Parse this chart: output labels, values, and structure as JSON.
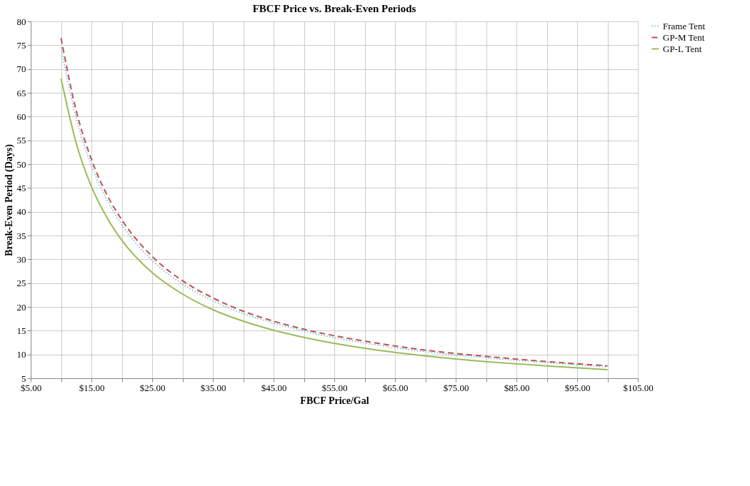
{
  "chart_data": {
    "type": "line",
    "title": "FBCF Price vs. Break-Even  Periods",
    "xlabel": "FBCF Price/Gal",
    "ylabel": "Break-Even Period (Days)",
    "x": [
      10,
      12.5,
      15,
      17.5,
      20,
      25,
      30,
      35,
      40,
      45,
      50,
      60,
      70,
      80,
      90,
      100
    ],
    "series": [
      {
        "name": "Frame Tent",
        "color": "#4bacc6",
        "line_style": "dotted",
        "values": [
          74.5,
          59.6,
          49.7,
          42.6,
          37.3,
          29.8,
          24.8,
          21.3,
          18.6,
          16.6,
          14.9,
          12.4,
          10.6,
          9.3,
          8.3,
          7.4
        ]
      },
      {
        "name": "GP-M Tent",
        "color": "#c0504d",
        "line_style": "dashed",
        "values": [
          76.5,
          61.2,
          51.0,
          43.7,
          38.3,
          30.6,
          25.5,
          21.9,
          19.1,
          17.0,
          15.3,
          12.8,
          10.9,
          9.6,
          8.5,
          7.6
        ]
      },
      {
        "name": "GP-L Tent",
        "color": "#9bbb59",
        "line_style": "solid",
        "values": [
          68.0,
          54.4,
          45.3,
          38.9,
          34.0,
          27.2,
          22.7,
          19.4,
          17.0,
          15.1,
          13.6,
          11.3,
          9.7,
          8.5,
          7.6,
          6.8
        ]
      }
    ],
    "xlim": [
      5,
      105
    ],
    "xticks": [
      {
        "value": 5,
        "label": "$5.00"
      },
      {
        "value": 10,
        "label": null
      },
      {
        "value": 15,
        "label": "$15.00"
      },
      {
        "value": 20,
        "label": null
      },
      {
        "value": 25,
        "label": "$25.00"
      },
      {
        "value": 30,
        "label": null
      },
      {
        "value": 35,
        "label": "$35.00"
      },
      {
        "value": 40,
        "label": null
      },
      {
        "value": 45,
        "label": "$45.00"
      },
      {
        "value": 50,
        "label": null
      },
      {
        "value": 55,
        "label": "$55.00"
      },
      {
        "value": 60,
        "label": null
      },
      {
        "value": 65,
        "label": "$65.00"
      },
      {
        "value": 70,
        "label": null
      },
      {
        "value": 75,
        "label": "$75.00"
      },
      {
        "value": 80,
        "label": null
      },
      {
        "value": 85,
        "label": "$85.00"
      },
      {
        "value": 90,
        "label": null
      },
      {
        "value": 95,
        "label": "$95.00"
      },
      {
        "value": 100,
        "label": null
      },
      {
        "value": 105,
        "label": "$105.00"
      }
    ],
    "ylim": [
      5,
      80
    ],
    "yticks": [
      5,
      10,
      15,
      20,
      25,
      30,
      35,
      40,
      45,
      50,
      55,
      60,
      65,
      70,
      75,
      80
    ],
    "grid": true,
    "legend": "right",
    "marker": "none"
  }
}
